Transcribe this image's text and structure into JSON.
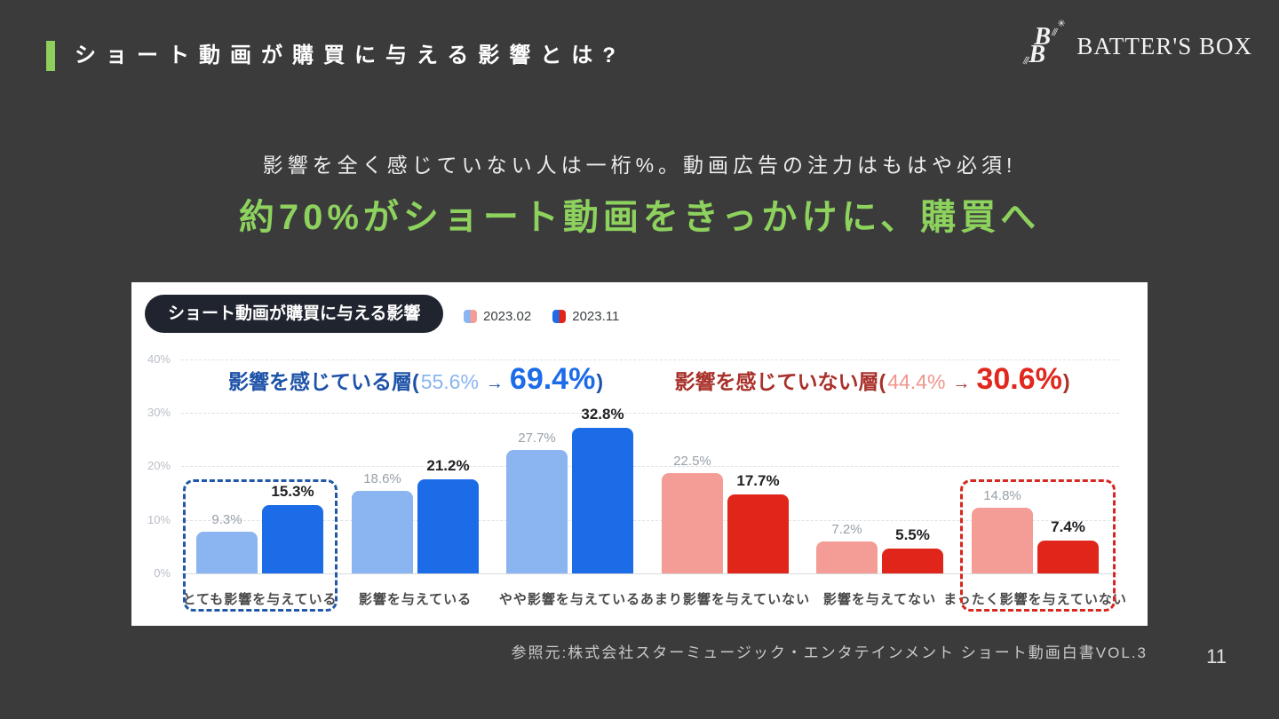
{
  "slide": {
    "title": "ショート動画が購買に与える影響とは?",
    "subtitle": "影響を全く感じていない人は一桁%。動画広告の注力はもはや必須!",
    "headline": "約70%がショート動画をきっかけに、購買へ",
    "source": "参照元:株式会社スターミュージック・エンタテインメント ショート動画白書VOL.3",
    "page_number": "11",
    "accent_green": "#8ccf5c",
    "headline_green": "#8ed25e",
    "background": "#3b3b3b"
  },
  "logo": {
    "monogram_top": "B",
    "monogram_bottom": "B",
    "hatch": "///",
    "star": "✳",
    "text": "BATTER'S BOX"
  },
  "chart_data": {
    "type": "bar",
    "title": "ショート動画が購買に与える影響",
    "legend_position": "top",
    "legend": [
      {
        "label": "2023.02",
        "colors": [
          "#8ab5f0",
          "#f49d96"
        ]
      },
      {
        "label": "2023.11",
        "colors": [
          "#1c6ce8",
          "#e0261a"
        ]
      }
    ],
    "categories": [
      {
        "label": "とても影響を与えている",
        "group": "blue",
        "highlighted": true
      },
      {
        "label": "影響を与えている",
        "group": "blue",
        "highlighted": false
      },
      {
        "label": "やや影響を与えている",
        "group": "blue",
        "highlighted": false
      },
      {
        "label": "あまり影響を与えていない",
        "group": "red",
        "highlighted": false
      },
      {
        "label": "影響を与えてない",
        "group": "red",
        "highlighted": false
      },
      {
        "label": "まったく影響を与えていない",
        "group": "red",
        "highlighted": true
      }
    ],
    "series": [
      {
        "name": "2023.02",
        "values": [
          9.3,
          18.6,
          27.7,
          22.5,
          7.2,
          14.8
        ]
      },
      {
        "name": "2023.11",
        "values": [
          15.3,
          21.2,
          32.8,
          17.7,
          5.5,
          7.4
        ]
      }
    ],
    "y_ticks": [
      "40%",
      "30%",
      "20%",
      "10%",
      "0%"
    ],
    "ylim": [
      0,
      40
    ],
    "grid": "horizontal-dashed",
    "annotations": [
      {
        "side": "left",
        "prefix": "影響を感じている層(",
        "old": "55.6%",
        "arrow": "→",
        "new": "69.4%",
        "suffix": ")"
      },
      {
        "side": "right",
        "prefix": "影響を感じていない層(",
        "old": "44.4%",
        "arrow": "→",
        "new": "30.6%",
        "suffix": ")"
      }
    ],
    "colors": {
      "series1_blue": "#8ab5f0",
      "series2_blue": "#1c6ce8",
      "series1_red": "#f49d96",
      "series2_red": "#e0261a",
      "highlight_blue": "#2159a8",
      "highlight_red": "#d6281e"
    }
  }
}
